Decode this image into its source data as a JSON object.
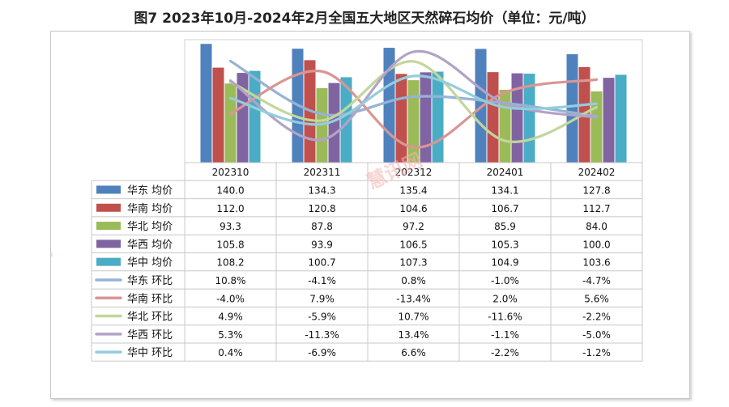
{
  "title": "图7 2023年10月-2024年2月全国五大地区天然碎石均价（单位：元/吨）",
  "watermark": "慧讯网",
  "chart_data": {
    "type": "bar+line",
    "categories": [
      "202310",
      "202311",
      "202312",
      "202401",
      "202402"
    ],
    "bar_series": [
      {
        "name": "华东 均价",
        "color": "#4f81bd",
        "values": [
          140.0,
          134.3,
          135.4,
          134.1,
          127.8
        ]
      },
      {
        "name": "华南 均价",
        "color": "#c0504d",
        "values": [
          112.0,
          120.8,
          104.6,
          106.7,
          112.7
        ]
      },
      {
        "name": "华北 均价",
        "color": "#9bbb59",
        "values": [
          93.3,
          87.8,
          97.2,
          85.9,
          84.0
        ]
      },
      {
        "name": "华西 均价",
        "color": "#8064a2",
        "values": [
          105.8,
          93.9,
          106.5,
          105.3,
          100.0
        ]
      },
      {
        "name": "华中 均价",
        "color": "#4bacc6",
        "values": [
          108.2,
          100.7,
          107.3,
          104.9,
          103.6
        ]
      }
    ],
    "line_series": [
      {
        "name": "华东 环比",
        "color": "#95b3d7",
        "values": [
          10.8,
          -4.1,
          0.8,
          -1.0,
          -4.7
        ]
      },
      {
        "name": "华南 环比",
        "color": "#d99694",
        "values": [
          -4.0,
          7.9,
          -13.4,
          2.0,
          5.6
        ]
      },
      {
        "name": "华北 环比",
        "color": "#c3d69b",
        "values": [
          4.9,
          -5.9,
          10.7,
          -11.6,
          -2.2
        ]
      },
      {
        "name": "华西 环比",
        "color": "#b3a2c7",
        "values": [
          5.3,
          -11.3,
          13.4,
          -1.1,
          -5.0
        ]
      },
      {
        "name": "华中 环比",
        "color": "#93cddd",
        "values": [
          0.4,
          -6.9,
          6.6,
          -2.2,
          -1.2
        ]
      }
    ],
    "table": {
      "bar_rows": [
        [
          "140.0",
          "134.3",
          "135.4",
          "134.1",
          "127.8"
        ],
        [
          "112.0",
          "120.8",
          "104.6",
          "106.7",
          "112.7"
        ],
        [
          "93.3",
          "87.8",
          "97.2",
          "85.9",
          "84.0"
        ],
        [
          "105.8",
          "93.9",
          "106.5",
          "105.3",
          "100.0"
        ],
        [
          "108.2",
          "100.7",
          "107.3",
          "104.9",
          "103.6"
        ]
      ],
      "line_rows": [
        [
          "10.8%",
          "-4.1%",
          "0.8%",
          "-1.0%",
          "-4.7%"
        ],
        [
          "-4.0%",
          "7.9%",
          "-13.4%",
          "2.0%",
          "5.6%"
        ],
        [
          "4.9%",
          "-5.9%",
          "10.7%",
          "-11.6%",
          "-2.2%"
        ],
        [
          "5.3%",
          "-11.3%",
          "13.4%",
          "-1.1%",
          "-5.0%"
        ],
        [
          "0.4%",
          "-6.9%",
          "6.6%",
          "-2.2%",
          "-1.2%"
        ]
      ]
    }
  }
}
